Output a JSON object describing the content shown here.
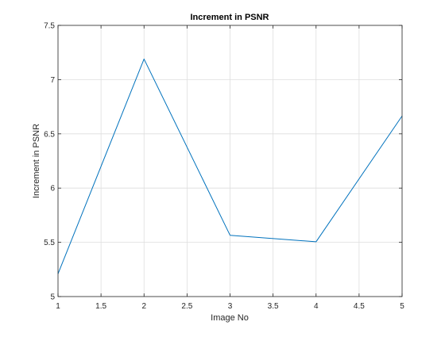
{
  "chart_data": {
    "type": "line",
    "title": "Increment in PSNR",
    "xlabel": "Image No",
    "ylabel": "Increment in PSNR",
    "xlim": [
      1,
      5
    ],
    "ylim": [
      5,
      7.5
    ],
    "xticks": [
      1,
      1.5,
      2,
      2.5,
      3,
      3.5,
      4,
      4.5,
      5
    ],
    "xtick_labels": [
      "1",
      "1.5",
      "2",
      "2.5",
      "3",
      "3.5",
      "4",
      "4.5",
      "5"
    ],
    "yticks": [
      5,
      5.5,
      6,
      6.5,
      7,
      7.5
    ],
    "ytick_labels": [
      "5",
      "5.5",
      "6",
      "6.5",
      "7",
      "7.5"
    ],
    "grid": true,
    "series": [
      {
        "color": "#0072bd",
        "x": [
          1,
          2,
          3,
          4,
          5
        ],
        "y": [
          5.21,
          7.19,
          5.565,
          5.505,
          6.665
        ]
      }
    ]
  }
}
